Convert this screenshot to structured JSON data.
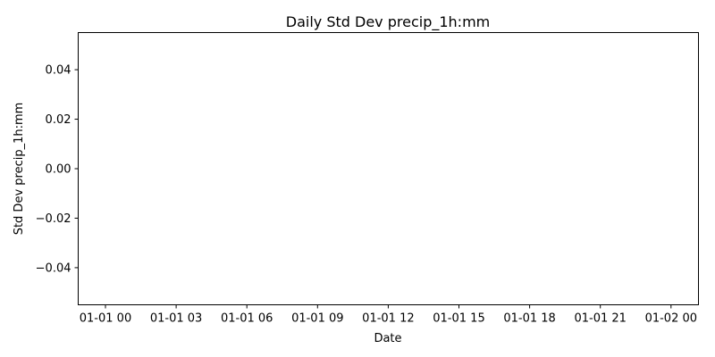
{
  "chart_data": {
    "type": "line",
    "title": "Daily Std Dev precip_1h:mm",
    "xlabel": "Date",
    "ylabel": "Std Dev precip_1h:mm",
    "x_ticks": [
      "01-01 00",
      "01-01 03",
      "01-01 06",
      "01-01 09",
      "01-01 12",
      "01-01 15",
      "01-01 18",
      "01-01 21",
      "01-02 00"
    ],
    "y_ticks": [
      "0.04",
      "0.02",
      "0.00",
      "−0.02",
      "−0.04"
    ],
    "y_tick_values": [
      0.04,
      0.02,
      0.0,
      -0.02,
      -0.04
    ],
    "ylim": [
      -0.055,
      0.055
    ],
    "series": [],
    "grid": false,
    "legend": "none"
  }
}
